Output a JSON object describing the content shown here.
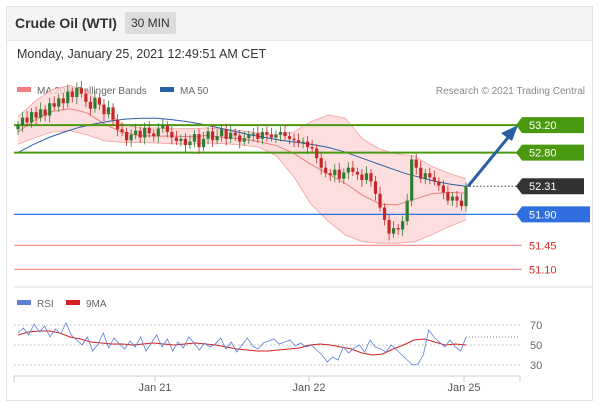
{
  "header": {
    "title": "Crude Oil (WTI)",
    "timeframe": "30 MIN"
  },
  "timestamp": "Monday, January 25, 2021 12:49:51 AM CET",
  "legend": {
    "bollinger": "MA 20 + Bollinger Bands",
    "ma50": "MA 50",
    "rsi": "RSI",
    "rsi_ma": "9MA"
  },
  "credit": "Research © 2021 Trading Central",
  "colors": {
    "resistance": "#4a9a10",
    "support": "#2f6fe0",
    "minor": "#f07070",
    "candle_up": "#2e7d32",
    "candle_down": "#c62828",
    "band": "#fcd6d6",
    "ma50": "#2a5fa6",
    "rsi": "#5b7fd6",
    "rsi_ma": "#d62020"
  },
  "chart_data": [
    {
      "type": "candlestick",
      "x_ticks": [
        "Jan 21",
        "Jan 22",
        "Jan 25"
      ],
      "ylim": [
        50.9,
        53.45
      ],
      "levels": [
        {
          "value": 53.2,
          "label": "53.20",
          "kind": "resistance"
        },
        {
          "value": 52.8,
          "label": "52.80",
          "kind": "resistance"
        },
        {
          "value": 52.31,
          "label": "52.31",
          "kind": "current"
        },
        {
          "value": 51.9,
          "label": "51.90",
          "kind": "support"
        },
        {
          "value": 51.45,
          "label": "51.45",
          "kind": "minor"
        },
        {
          "value": 51.1,
          "label": "51.10",
          "kind": "minor"
        }
      ],
      "closes": [
        53.2,
        53.31,
        53.24,
        53.39,
        53.31,
        53.43,
        53.34,
        53.52,
        53.47,
        53.59,
        53.52,
        53.69,
        53.61,
        53.74,
        53.66,
        53.54,
        53.44,
        53.6,
        53.5,
        53.36,
        53.46,
        53.28,
        53.14,
        53.1,
        52.98,
        53.06,
        53.12,
        53.02,
        53.16,
        53.08,
        53.04,
        53.15,
        53.2,
        53.1,
        53.02,
        52.97,
        53.0,
        52.91,
        52.96,
        53.07,
        52.88,
        53.0,
        53.11,
        52.98,
        53.04,
        53.14,
        53.0,
        53.09,
        53.05,
        52.96,
        53.01,
        53.06,
        53.08,
        53.0,
        53.1,
        53.06,
        53.02,
        53.06,
        53.1,
        53.04,
        53.0,
        52.98,
        52.94,
        52.96,
        52.88,
        52.86,
        52.72,
        52.58,
        52.5,
        52.47,
        52.55,
        52.42,
        52.51,
        52.58,
        52.52,
        52.48,
        52.4,
        52.5,
        52.38,
        52.2,
        52.0,
        51.82,
        51.62,
        51.7,
        51.68,
        51.8,
        52.1,
        52.7,
        52.58,
        52.42,
        52.5,
        52.44,
        52.38,
        52.32,
        52.22,
        52.1,
        52.16,
        52.1,
        52.02,
        52.31
      ],
      "ma50": [
        52.8,
        52.92,
        53.02,
        53.1,
        53.17,
        53.22,
        53.26,
        53.29,
        53.3,
        53.3,
        53.28,
        53.25,
        53.21,
        53.16,
        53.11,
        53.06,
        53.02,
        52.98,
        52.95,
        52.92,
        52.88,
        52.82,
        52.74,
        52.66,
        52.58,
        52.5,
        52.44,
        52.38,
        52.34,
        52.31
      ],
      "ma20": [
        53.1,
        53.28,
        53.4,
        53.44,
        53.38,
        53.22,
        53.1,
        53.05,
        53.04,
        53.04,
        53.03,
        53.05,
        53.02,
        53.0,
        52.96,
        52.9,
        52.79,
        52.63,
        52.49,
        52.35,
        52.18,
        52.05,
        52.04,
        52.12,
        52.2,
        52.22,
        52.21
      ],
      "band_upper": [
        53.32,
        53.55,
        53.72,
        53.78,
        53.7,
        53.45,
        53.22,
        53.16,
        53.16,
        53.15,
        53.15,
        53.16,
        53.14,
        53.12,
        53.08,
        53.06,
        53.1,
        53.25,
        53.35,
        53.3,
        53.0,
        52.85,
        52.78,
        52.75,
        52.6,
        52.5,
        52.42
      ],
      "band_lower": [
        52.92,
        53.02,
        53.1,
        53.12,
        53.06,
        52.97,
        52.95,
        52.95,
        52.94,
        52.93,
        52.92,
        52.94,
        52.93,
        52.91,
        52.88,
        52.75,
        52.45,
        52.05,
        51.8,
        51.6,
        51.5,
        51.48,
        51.48,
        51.5,
        51.6,
        51.72,
        51.82
      ]
    },
    {
      "type": "line",
      "y_ticks": [
        70,
        50,
        30
      ],
      "ylim": [
        20,
        80
      ],
      "series": [
        {
          "name": "RSI",
          "values": [
            62,
            67,
            60,
            71,
            63,
            69,
            58,
            66,
            61,
            72,
            60,
            55,
            50,
            58,
            44,
            51,
            62,
            47,
            57,
            51,
            46,
            54,
            48,
            58,
            44,
            52,
            60,
            48,
            56,
            44,
            53,
            47,
            58,
            52,
            45,
            52,
            48,
            51,
            57,
            46,
            53,
            43,
            50,
            57,
            49,
            46,
            52,
            54,
            56,
            51,
            53,
            55,
            49,
            52,
            48,
            50,
            45,
            40,
            33,
            38,
            35,
            48,
            42,
            47,
            50,
            43,
            55,
            48,
            46,
            43,
            50,
            45,
            40,
            35,
            30,
            31,
            40,
            65,
            58,
            53,
            48,
            55,
            48,
            44,
            58
          ]
        },
        {
          "name": "9MA",
          "values": [
            60,
            63,
            64,
            64,
            62,
            58,
            56,
            53,
            52,
            51,
            51,
            50,
            51,
            52,
            51,
            50,
            51,
            52,
            51,
            50,
            48,
            46,
            45,
            44,
            44,
            45,
            46,
            47,
            50,
            51,
            50,
            48,
            46,
            42,
            40,
            41,
            46,
            50,
            55,
            56,
            53,
            50,
            51,
            50
          ]
        }
      ]
    }
  ]
}
